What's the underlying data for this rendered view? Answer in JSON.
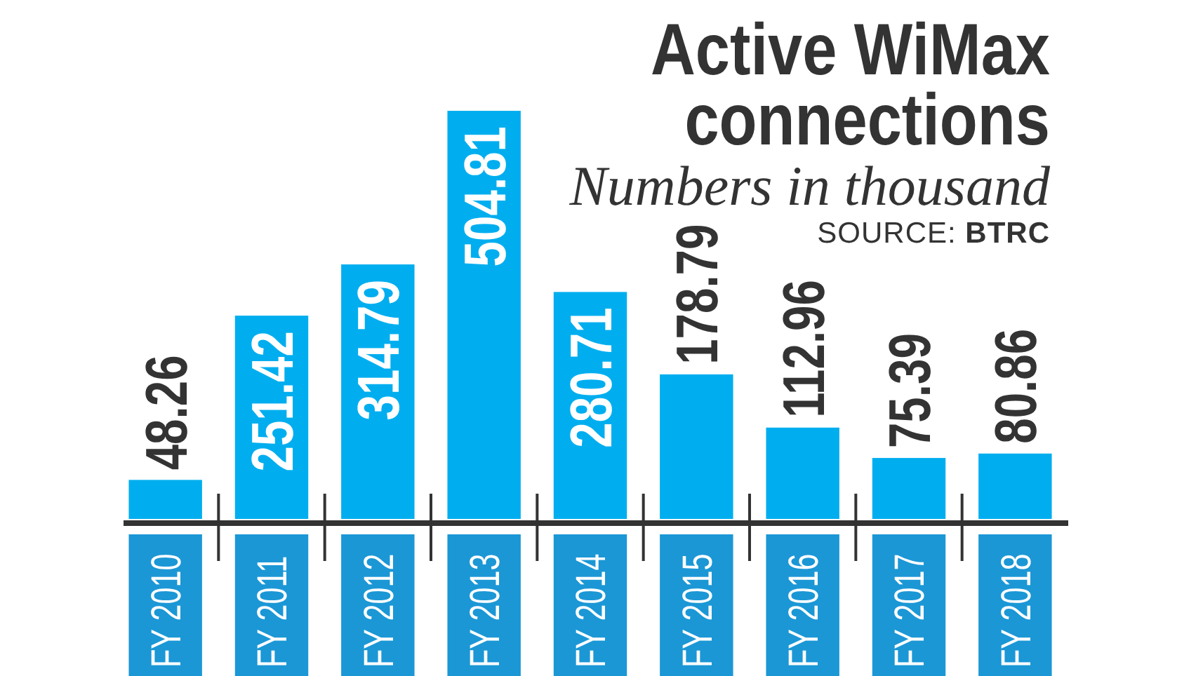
{
  "chart_data": {
    "type": "bar",
    "title": "Active WiMax connections",
    "subtitle": "Numbers in thousand",
    "annotations": [
      "SOURCE: BTRC"
    ],
    "categories": [
      "FY 2010",
      "FY 2011",
      "FY 2012",
      "FY 2013",
      "FY 2014",
      "FY 2015",
      "FY 2016",
      "FY 2017",
      "FY 2018"
    ],
    "values": [
      48.26,
      251.42,
      314.79,
      504.81,
      280.71,
      178.79,
      112.96,
      75.39,
      80.86
    ],
    "color": "#00aeef",
    "data_labels": true
  }
}
